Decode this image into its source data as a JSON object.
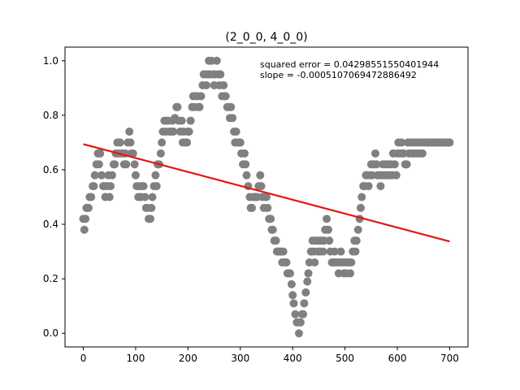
{
  "chart_data": {
    "type": "scatter",
    "title": "(2_0_0, 4_0_0)",
    "xlabel": "",
    "ylabel": "",
    "xlim": [
      -35,
      735
    ],
    "ylim": [
      -0.05,
      1.05
    ],
    "xticks": [
      0,
      100,
      200,
      300,
      400,
      500,
      600,
      700
    ],
    "yticks": [
      0.0,
      0.2,
      0.4,
      0.6,
      0.8,
      1.0
    ],
    "grid": false,
    "annotations": [
      "squared error = 0.04298551550401944",
      "slope = -0.0005107069472886492"
    ],
    "series": [
      {
        "type": "scatter",
        "color": "#808080",
        "x": [
          0,
          2,
          4,
          6,
          8,
          10,
          12,
          15,
          18,
          20,
          22,
          25,
          28,
          30,
          32,
          35,
          38,
          40,
          42,
          45,
          48,
          50,
          52,
          55,
          58,
          60,
          62,
          65,
          68,
          70,
          72,
          75,
          78,
          80,
          82,
          85,
          88,
          90,
          92,
          95,
          98,
          100,
          102,
          105,
          108,
          110,
          112,
          115,
          118,
          120,
          122,
          125,
          128,
          130,
          132,
          135,
          138,
          140,
          142,
          145,
          148,
          150,
          152,
          155,
          158,
          160,
          162,
          165,
          168,
          170,
          172,
          175,
          178,
          180,
          182,
          185,
          188,
          190,
          192,
          195,
          198,
          200,
          202,
          205,
          208,
          210,
          212,
          215,
          218,
          220,
          222,
          225,
          228,
          230,
          232,
          235,
          238,
          240,
          242,
          245,
          248,
          250,
          252,
          255,
          258,
          260,
          262,
          265,
          268,
          270,
          272,
          275,
          278,
          280,
          282,
          285,
          288,
          290,
          292,
          295,
          298,
          300,
          302,
          305,
          308,
          310,
          312,
          315,
          318,
          320,
          322,
          325,
          328,
          330,
          332,
          335,
          338,
          340,
          342,
          345,
          348,
          350,
          352,
          355,
          358,
          360,
          362,
          365,
          368,
          370,
          372,
          375,
          378,
          380,
          382,
          385,
          388,
          390,
          392,
          395,
          398,
          400,
          402,
          405,
          408,
          410,
          412,
          415,
          418,
          420,
          422,
          425,
          428,
          430,
          432,
          435,
          438,
          440,
          442,
          445,
          448,
          450,
          452,
          455,
          458,
          460,
          462,
          465,
          468,
          470,
          472,
          475,
          478,
          480,
          482,
          485,
          488,
          490,
          492,
          495,
          498,
          500,
          502,
          505,
          508,
          510,
          512,
          515,
          518,
          520,
          522,
          525,
          528,
          530,
          532,
          535,
          538,
          540,
          542,
          545,
          548,
          550,
          552,
          555,
          558,
          560,
          562,
          565,
          568,
          570,
          572,
          575,
          578,
          580,
          582,
          585,
          588,
          590,
          592,
          595,
          598,
          600,
          602,
          605,
          608,
          610,
          612,
          615,
          618,
          620,
          622,
          625,
          628,
          630,
          632,
          635,
          638,
          640,
          642,
          645,
          648,
          650,
          652,
          655,
          658,
          660,
          662,
          665,
          668,
          670,
          672,
          675,
          678,
          680,
          682,
          685,
          688,
          690,
          692,
          695,
          698,
          700
        ],
        "y": [
          0.42,
          0.38,
          0.42,
          0.46,
          0.46,
          0.46,
          0.5,
          0.5,
          0.54,
          0.54,
          0.58,
          0.62,
          0.66,
          0.62,
          0.66,
          0.58,
          0.54,
          0.54,
          0.5,
          0.54,
          0.58,
          0.5,
          0.54,
          0.58,
          0.62,
          0.62,
          0.66,
          0.7,
          0.66,
          0.7,
          0.66,
          0.66,
          0.62,
          0.66,
          0.62,
          0.7,
          0.74,
          0.7,
          0.66,
          0.66,
          0.62,
          0.58,
          0.54,
          0.5,
          0.54,
          0.5,
          0.54,
          0.54,
          0.5,
          0.46,
          0.46,
          0.42,
          0.42,
          0.46,
          0.5,
          0.54,
          0.58,
          0.54,
          0.62,
          0.62,
          0.66,
          0.7,
          0.74,
          0.78,
          0.74,
          0.78,
          0.78,
          0.74,
          0.74,
          0.78,
          0.74,
          0.79,
          0.83,
          0.83,
          0.78,
          0.74,
          0.78,
          0.7,
          0.74,
          0.7,
          0.7,
          0.74,
          0.74,
          0.78,
          0.83,
          0.87,
          0.83,
          0.87,
          0.87,
          0.83,
          0.83,
          0.87,
          0.91,
          0.95,
          0.95,
          0.91,
          0.95,
          1.0,
          0.95,
          1.0,
          0.95,
          0.91,
          0.95,
          1.0,
          0.95,
          0.91,
          0.95,
          0.87,
          0.91,
          0.87,
          0.87,
          0.83,
          0.83,
          0.79,
          0.83,
          0.79,
          0.74,
          0.7,
          0.74,
          0.7,
          0.7,
          0.7,
          0.66,
          0.62,
          0.66,
          0.62,
          0.58,
          0.54,
          0.5,
          0.46,
          0.46,
          0.5,
          0.5,
          0.5,
          0.5,
          0.54,
          0.58,
          0.54,
          0.5,
          0.46,
          0.5,
          0.5,
          0.46,
          0.42,
          0.42,
          0.38,
          0.38,
          0.34,
          0.34,
          0.3,
          0.3,
          0.3,
          0.3,
          0.26,
          0.3,
          0.26,
          0.26,
          0.22,
          0.22,
          0.22,
          0.18,
          0.14,
          0.11,
          0.07,
          0.04,
          0.04,
          0.0,
          0.04,
          0.07,
          0.07,
          0.11,
          0.15,
          0.19,
          0.22,
          0.26,
          0.3,
          0.34,
          0.3,
          0.26,
          0.34,
          0.3,
          0.34,
          0.3,
          0.34,
          0.3,
          0.34,
          0.38,
          0.42,
          0.38,
          0.34,
          0.3,
          0.26,
          0.26,
          0.3,
          0.26,
          0.26,
          0.22,
          0.26,
          0.3,
          0.26,
          0.22,
          0.26,
          0.22,
          0.26,
          0.26,
          0.22,
          0.26,
          0.3,
          0.34,
          0.3,
          0.34,
          0.38,
          0.42,
          0.46,
          0.5,
          0.54,
          0.54,
          0.58,
          0.58,
          0.54,
          0.58,
          0.62,
          0.58,
          0.62,
          0.66,
          0.62,
          0.58,
          0.58,
          0.54,
          0.58,
          0.62,
          0.58,
          0.62,
          0.58,
          0.62,
          0.58,
          0.62,
          0.58,
          0.66,
          0.62,
          0.58,
          0.66,
          0.7,
          0.66,
          0.7,
          0.66,
          0.66,
          0.62,
          0.62,
          0.7,
          0.66,
          0.7,
          0.66,
          0.7,
          0.66,
          0.7,
          0.66,
          0.7,
          0.66,
          0.7,
          0.66,
          0.7,
          0.7,
          0.7,
          0.7,
          0.7,
          0.7,
          0.7,
          0.7,
          0.7,
          0.7,
          0.7,
          0.7,
          0.7,
          0.7,
          0.7,
          0.7,
          0.7,
          0.7,
          0.7,
          0.7,
          0.7
        ]
      },
      {
        "type": "line",
        "color": "#e5140f",
        "x": [
          0,
          700
        ],
        "y": [
          0.694,
          0.337
        ]
      }
    ]
  }
}
